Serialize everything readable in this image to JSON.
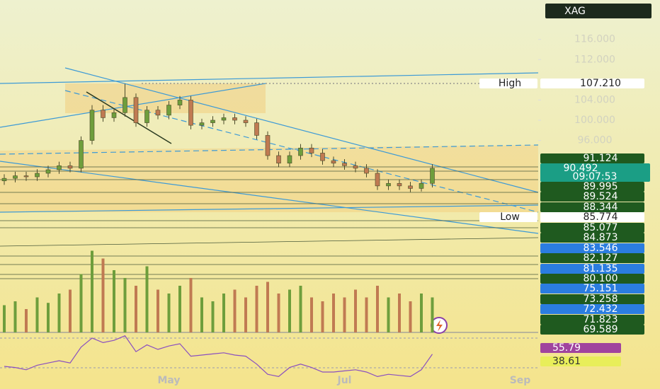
{
  "chart_data": {
    "type": "candlestick",
    "symbol": "XAG",
    "categories": [
      null,
      null,
      null,
      null,
      null,
      null,
      null,
      null,
      null,
      null,
      null,
      null,
      null,
      null,
      null,
      "May",
      null,
      null,
      null,
      null,
      null,
      null,
      null,
      null,
      null,
      null,
      null,
      null,
      null,
      null,
      null,
      "Jul",
      null,
      null,
      null,
      null,
      null,
      null,
      null,
      null,
      null,
      null,
      null,
      null,
      null,
      null,
      null,
      "Sep"
    ],
    "open": [
      88,
      88.5,
      89,
      88.8,
      89.5,
      90.2,
      91,
      90.5,
      96,
      102,
      100.5,
      101.5,
      104.5,
      99.5,
      102,
      101,
      103,
      104,
      99,
      99.5,
      100,
      100.5,
      100,
      99.5,
      97,
      93,
      91.5,
      93,
      94.5,
      93.5,
      92,
      91.5,
      91,
      90.5,
      89.5,
      87,
      87.5,
      87,
      86.5,
      87.5,
      null,
      null,
      null,
      null,
      null,
      null,
      null,
      null
    ],
    "high": [
      89.3,
      89.8,
      89.8,
      90.3,
      91,
      91.8,
      91.8,
      96.8,
      103,
      103,
      102.3,
      107.21,
      105.3,
      102.8,
      102.8,
      103.8,
      104.8,
      104.8,
      100.3,
      100.8,
      101.3,
      101.3,
      100.8,
      100.3,
      97.8,
      93.8,
      93.8,
      95.3,
      95.3,
      94.3,
      92.8,
      92.3,
      91.8,
      91.3,
      90.3,
      88.3,
      88.3,
      87.8,
      88.3,
      91.3,
      null,
      null,
      null,
      null,
      null,
      null,
      null,
      null
    ],
    "low": [
      87.2,
      87.7,
      88,
      88,
      88.7,
      89.4,
      89.7,
      89.7,
      95.2,
      99.7,
      99.7,
      100.7,
      98.7,
      98.7,
      100.2,
      100.2,
      102.2,
      98.2,
      98.2,
      98.7,
      99.2,
      99.2,
      98.7,
      96.2,
      92.2,
      90.7,
      90.7,
      92.2,
      92.7,
      91.2,
      90.7,
      90.2,
      89.7,
      88.7,
      86.2,
      86.2,
      86.2,
      85.774,
      85.9,
      86.7,
      null,
      null,
      null,
      null,
      null,
      null,
      null,
      null
    ],
    "close": [
      88.5,
      89,
      88.8,
      89.5,
      90.2,
      91,
      90.5,
      96,
      102,
      100.5,
      101.5,
      104.5,
      99.5,
      102,
      101,
      103,
      104,
      99,
      99.5,
      100,
      100.5,
      100,
      99.5,
      97,
      93,
      91.5,
      93,
      94.5,
      93.5,
      92,
      91.5,
      91,
      90.5,
      89.5,
      87,
      87.5,
      87,
      86.5,
      87.5,
      90.5,
      null,
      null,
      null,
      null,
      null,
      null,
      null,
      null
    ],
    "volume": [
      35,
      40,
      30,
      45,
      38,
      50,
      55,
      75,
      105,
      95,
      80,
      70,
      60,
      85,
      55,
      50,
      60,
      70,
      45,
      40,
      50,
      55,
      45,
      60,
      65,
      50,
      55,
      60,
      45,
      40,
      50,
      45,
      55,
      45,
      60,
      45,
      50,
      40,
      50,
      45,
      null,
      null,
      null,
      null,
      null,
      null,
      null,
      null
    ],
    "rsi": [
      45,
      44,
      42,
      46,
      48,
      50,
      48,
      62,
      70,
      66,
      68,
      72,
      58,
      64,
      60,
      63,
      65,
      54,
      55,
      56,
      57,
      55,
      54,
      47,
      38,
      36,
      44,
      47,
      44,
      40,
      40,
      41,
      42,
      40,
      36,
      38,
      37,
      36,
      42,
      55.79,
      null,
      null,
      null,
      null,
      null,
      null,
      null,
      null
    ],
    "ylim": [
      58,
      123.8
    ],
    "yticks": [
      {
        "value": 96,
        "label": "96.000"
      },
      {
        "value": 100,
        "label": "100.000"
      },
      {
        "value": 104,
        "label": "104.000"
      },
      {
        "value": 112,
        "label": "112.000"
      },
      {
        "value": 116,
        "label": "116.000"
      }
    ],
    "rsi_ylim": [
      25,
      75
    ],
    "up_color": "#6e9e3c",
    "down_color": "#c07a52",
    "high_tag": {
      "label": "High",
      "value": "107.210"
    },
    "low_tag": {
      "label": "Low",
      "value": "85.774"
    },
    "last_price": {
      "value": "90.492",
      "countdown": "09:07:53"
    },
    "price_tags": [
      {
        "text": "91.124",
        "color": "#1f5a1f"
      },
      {
        "text": "89.995",
        "color": "#1f5a1f"
      },
      {
        "text": "89.524",
        "color": "#1f5a1f"
      },
      {
        "text": "88.344",
        "color": "#1f5a1f"
      },
      {
        "text": "85.077",
        "color": "#1f5a1f"
      },
      {
        "text": "84.873",
        "color": "#1f5a1f"
      },
      {
        "text": "83.546",
        "color": "#2b7de0"
      },
      {
        "text": "82.127",
        "color": "#1f5a1f"
      },
      {
        "text": "81.135",
        "color": "#2b7de0"
      },
      {
        "text": "80.100",
        "color": "#1f5a1f"
      },
      {
        "text": "75.151",
        "color": "#2b7de0"
      },
      {
        "text": "73.258",
        "color": "#1f5a1f"
      },
      {
        "text": "72.432",
        "color": "#2b7de0"
      },
      {
        "text": "71.823",
        "color": "#1f5a1f"
      },
      {
        "text": "69.589",
        "color": "#1f5a1f"
      }
    ],
    "rsi_tags": [
      {
        "text": "55.79",
        "color": "#a0449e"
      },
      {
        "text": "38.61",
        "color": "#e8ee5a"
      }
    ]
  }
}
